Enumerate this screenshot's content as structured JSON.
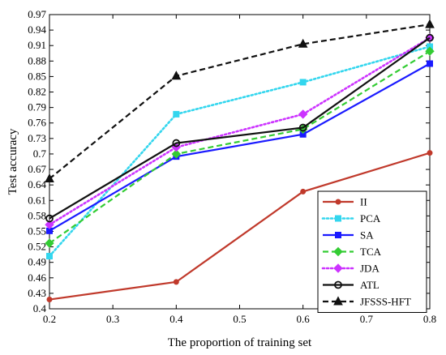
{
  "chart_data": {
    "type": "line",
    "xlabel": "The proportion of training set",
    "ylabel": "Test accuracy",
    "xlim": [
      0.2,
      0.8
    ],
    "ylim": [
      0.4,
      0.97
    ],
    "xticks": [
      "0.2",
      "0.3",
      "0.4",
      "0.5",
      "0.6",
      "0.7",
      "0.8"
    ],
    "yticks": [
      "0.4",
      "0.43",
      "0.46",
      "0.49",
      "0.52",
      "0.55",
      "0.58",
      "0.61",
      "0.64",
      "0.67",
      "0.7",
      "0.73",
      "0.76",
      "0.79",
      "0.82",
      "0.85",
      "0.88",
      "0.91",
      "0.94",
      "0.97"
    ],
    "x": [
      0.2,
      0.4,
      0.6,
      0.8
    ],
    "grid": false,
    "legend_position": "bottom-right",
    "series": [
      {
        "name": "II",
        "values": [
          0.418,
          0.452,
          0.627,
          0.702
        ],
        "color": "#c0392b",
        "dash": "solid",
        "marker": "dot"
      },
      {
        "name": "PCA",
        "values": [
          0.502,
          0.777,
          0.839,
          0.908
        ],
        "color": "#33d6ee",
        "dash": "dot",
        "marker": "square"
      },
      {
        "name": "SA",
        "values": [
          0.551,
          0.695,
          0.738,
          0.875
        ],
        "color": "#1a1aff",
        "dash": "solid",
        "marker": "square"
      },
      {
        "name": "TCA",
        "values": [
          0.527,
          0.7,
          0.748,
          0.899
        ],
        "color": "#33cc33",
        "dash": "dash",
        "marker": "diamond"
      },
      {
        "name": "JDA",
        "values": [
          0.563,
          0.713,
          0.777,
          0.925
        ],
        "color": "#cc33ff",
        "dash": "dot",
        "marker": "diamond"
      },
      {
        "name": "ATL",
        "values": [
          0.575,
          0.721,
          0.751,
          0.925
        ],
        "color": "#111111",
        "dash": "solid",
        "marker": "circle"
      },
      {
        "name": "JFSSS-HFT",
        "values": [
          0.652,
          0.851,
          0.913,
          0.951
        ],
        "color": "#111111",
        "dash": "dash",
        "marker": "triangle"
      }
    ]
  }
}
